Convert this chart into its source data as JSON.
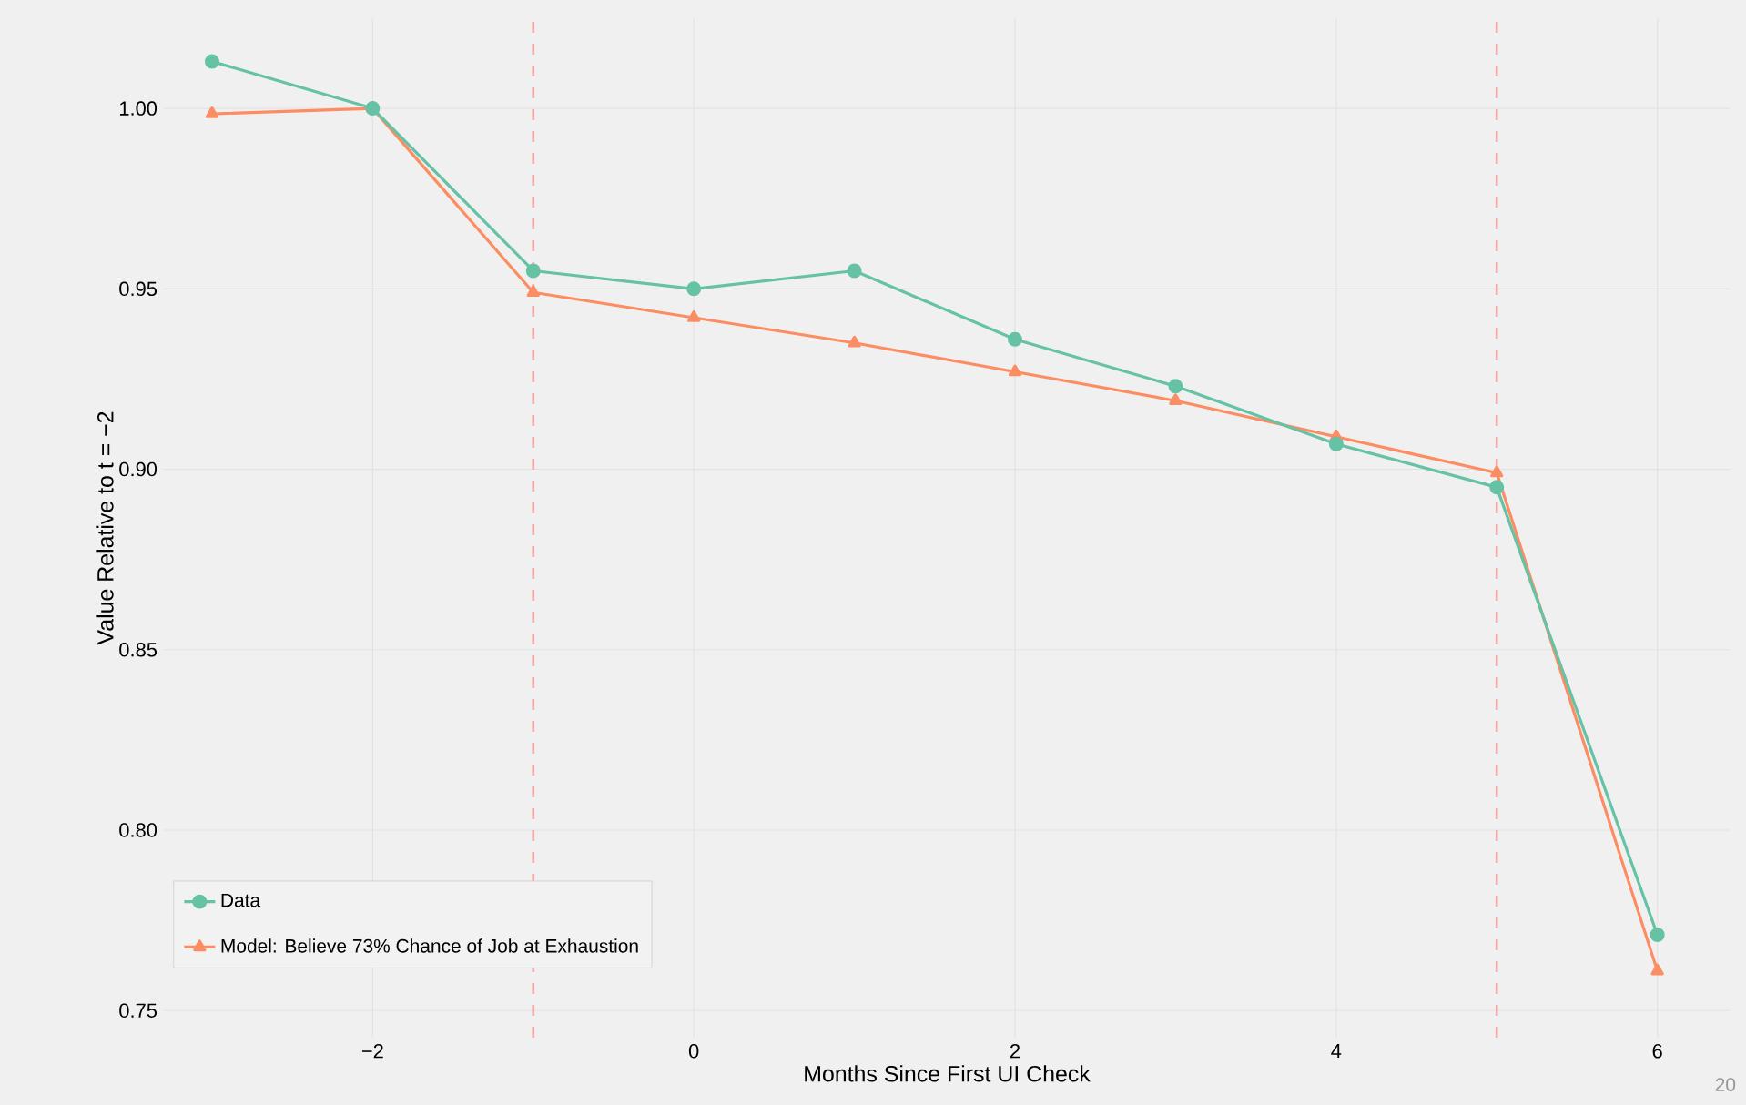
{
  "chart_data": {
    "type": "line",
    "xlabel": "Months Since First UI Check",
    "ylabel": "Value Relative to t = −2",
    "x": [
      -3,
      -2,
      -1,
      0,
      1,
      2,
      3,
      4,
      5,
      6
    ],
    "series": [
      {
        "name": "Data",
        "color": "#66c2a5",
        "marker": "circle",
        "values": [
          1.013,
          1.0,
          0.955,
          0.95,
          0.955,
          0.936,
          0.923,
          0.907,
          0.895,
          0.771
        ]
      },
      {
        "name": "Model: Believe 73% Chance of Job at Exhaustion",
        "color": "#fc8d62",
        "marker": "triangle",
        "values": [
          0.9985,
          1.0,
          0.949,
          0.942,
          0.935,
          0.927,
          0.919,
          0.909,
          0.899,
          0.761
        ]
      }
    ],
    "xlim": [
      -3.3,
      6.45
    ],
    "ylim": [
      0.7425,
      1.025
    ],
    "xticks": [
      {
        "value": -2,
        "label": "−2"
      },
      0,
      2,
      4,
      6
    ],
    "yticks": [
      {
        "value": 0.75,
        "label": "0.75"
      },
      {
        "value": 0.8,
        "label": "0.80"
      },
      {
        "value": 0.85,
        "label": "0.85"
      },
      {
        "value": 0.9,
        "label": "0.90"
      },
      {
        "value": 0.95,
        "label": "0.95"
      },
      {
        "value": 1.0,
        "label": "1.00"
      }
    ],
    "ref_lines": [
      {
        "axis": "x",
        "value": -1,
        "color": "#f4a9a8",
        "line_style": "dashed"
      },
      {
        "axis": "x",
        "value": 5,
        "color": "#f4a9a8",
        "line_style": "dashed"
      }
    ],
    "grid": true,
    "legend": "bottom left",
    "line_style": "solid",
    "annotations": [
      "20"
    ]
  }
}
